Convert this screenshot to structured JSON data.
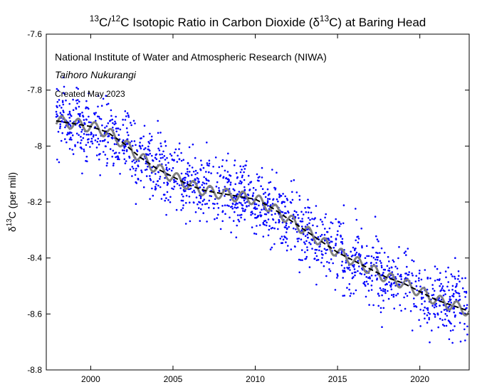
{
  "chart_data": {
    "type": "scatter",
    "title_parts": [
      "13",
      "C/",
      "12",
      "C Isotopic Ratio in Carbon Dioxide (δ",
      "13",
      "C) at Baring Head"
    ],
    "ylabel_parts": [
      "δ",
      "13",
      "C (per mil)"
    ],
    "annotations": [
      "National Institute of Water and Atmospheric Research (NIWA)",
      "Taihoro Nukurangi",
      "Created May 2023"
    ],
    "xlim": [
      1997.3,
      2023.0
    ],
    "ylim": [
      -8.8,
      -7.6
    ],
    "x_ticks": [
      2000,
      2005,
      2010,
      2015,
      2020
    ],
    "x_tick_labels": [
      "2000",
      "2005",
      "2010",
      "2015",
      "2020"
    ],
    "y_ticks": [
      -7.6,
      -7.8,
      -8.0,
      -8.2,
      -8.4,
      -8.6,
      -8.8
    ],
    "y_tick_labels": [
      "-7.6",
      "-7.8",
      "-8",
      "-8.2",
      "-8.4",
      "-8.6",
      "-8.8"
    ],
    "grid": false,
    "colors": {
      "points": "#0000ff",
      "seasonal_fit": "#808080",
      "trend": "#000000"
    },
    "trend_knots": {
      "x": [
        1997.9,
        1999,
        2000,
        2001,
        2002,
        2003,
        2004,
        2005,
        2006,
        2007,
        2008,
        2009,
        2010,
        2011,
        2012,
        2013,
        2014,
        2015,
        2016,
        2017,
        2018,
        2019,
        2020,
        2021,
        2022,
        2023
      ],
      "y": [
        -7.91,
        -7.92,
        -7.93,
        -7.95,
        -7.99,
        -8.04,
        -8.08,
        -8.11,
        -8.14,
        -8.16,
        -8.17,
        -8.18,
        -8.19,
        -8.22,
        -8.26,
        -8.3,
        -8.34,
        -8.38,
        -8.41,
        -8.44,
        -8.47,
        -8.49,
        -8.52,
        -8.55,
        -8.57,
        -8.59
      ]
    },
    "series": [
      {
        "name": "",
        "kind": "points",
        "x_range": [
          1997.9,
          2023.0
        ],
        "scatter_sd": 0.06,
        "count": 1600
      },
      {
        "name": "",
        "kind": "seasonal_fit",
        "seasonal_amplitude": 0.02
      },
      {
        "name": "",
        "kind": "trend"
      }
    ]
  }
}
